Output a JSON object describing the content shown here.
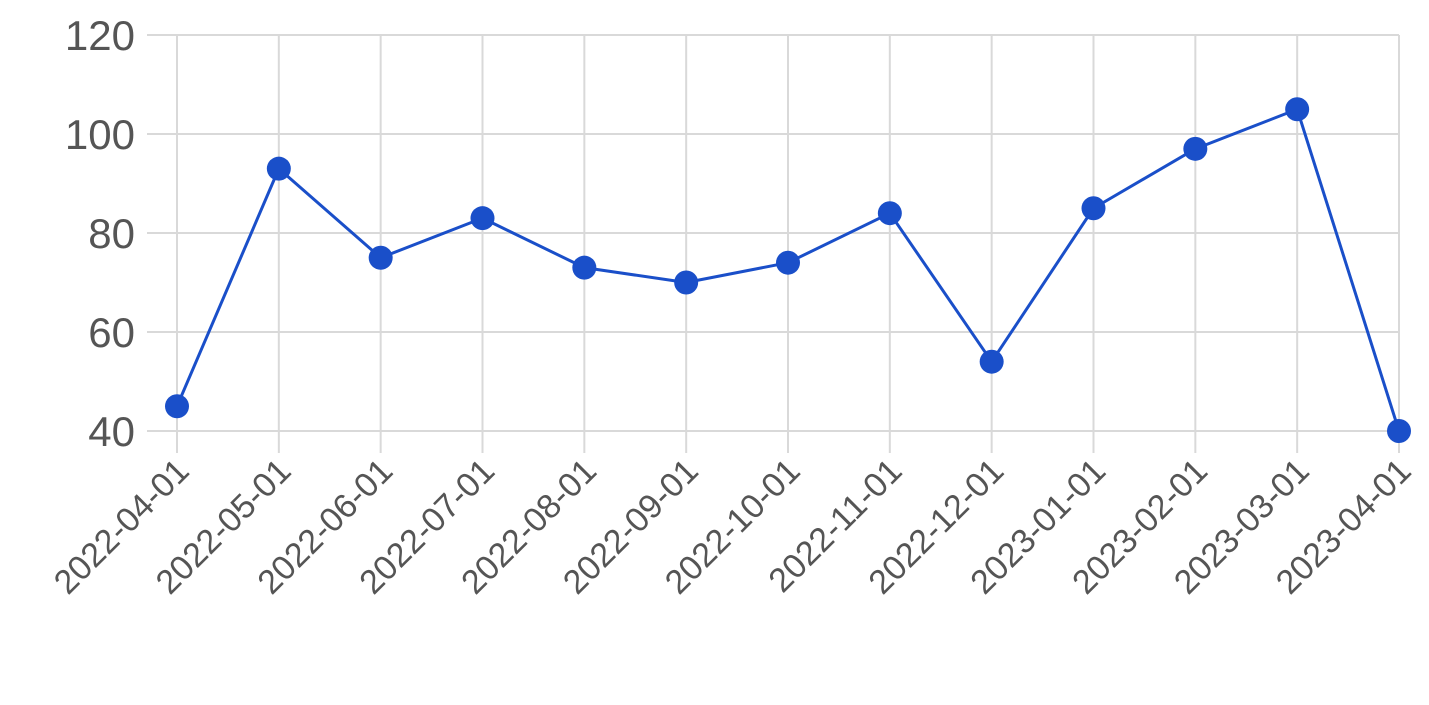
{
  "chart_data": {
    "type": "line",
    "title": "",
    "xlabel": "",
    "ylabel": "",
    "x": [
      "2022-04-01",
      "2022-05-01",
      "2022-06-01",
      "2022-07-01",
      "2022-08-01",
      "2022-09-01",
      "2022-10-01",
      "2022-11-01",
      "2022-12-01",
      "2023-01-01",
      "2023-02-01",
      "2023-03-01",
      "2023-04-01"
    ],
    "series": [
      {
        "values": [
          45,
          93,
          75,
          83,
          73,
          70,
          74,
          84,
          54,
          85,
          97,
          105,
          40
        ],
        "color": "#1a4fc9"
      }
    ],
    "ylim": [
      40,
      120
    ],
    "yticks": [
      40,
      60,
      80,
      100,
      120
    ],
    "grid": true,
    "legend": "none"
  }
}
